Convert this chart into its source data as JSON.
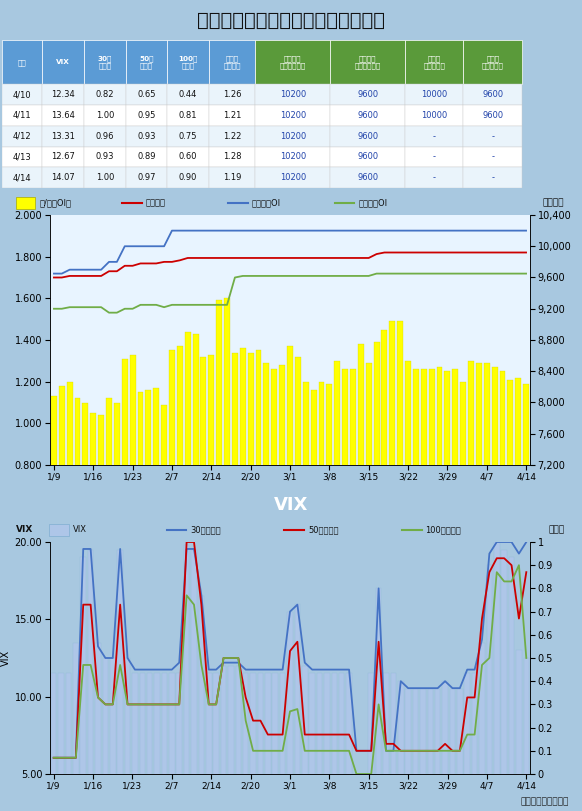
{
  "title": "選擇權波動率指數與賣買權未平倉比",
  "table": {
    "col_headers_blue": [
      "日期",
      "VIX",
      "30日\n百分位",
      "50日\n百分位",
      "100日\n百分位",
      "賣買權\n未平倉比"
    ],
    "col_headers_green": [
      "買權最大\n未平倉履約價",
      "賣權最大\n未平倉履約價",
      "週買權\n最大履約價",
      "週賣權\n最大履約價"
    ],
    "rows": [
      [
        "4/10",
        "12.34",
        "0.82",
        "0.65",
        "0.44",
        "1.26",
        "10200",
        "9600",
        "10000",
        "9600"
      ],
      [
        "4/11",
        "13.64",
        "1.00",
        "0.95",
        "0.81",
        "1.21",
        "10200",
        "9600",
        "10000",
        "9600"
      ],
      [
        "4/12",
        "13.31",
        "0.96",
        "0.93",
        "0.75",
        "1.22",
        "10200",
        "9600",
        "-",
        "-"
      ],
      [
        "4/13",
        "12.67",
        "0.93",
        "0.89",
        "0.60",
        "1.28",
        "10200",
        "9600",
        "-",
        "-"
      ],
      [
        "4/14",
        "14.07",
        "1.00",
        "0.97",
        "0.90",
        "1.19",
        "10200",
        "9600",
        "-",
        "-"
      ]
    ],
    "col_widths": [
      0.07,
      0.072,
      0.072,
      0.072,
      0.072,
      0.08,
      0.13,
      0.13,
      0.1,
      0.102
    ]
  },
  "chart1": {
    "bar_values": [
      1.13,
      1.18,
      1.2,
      1.12,
      1.1,
      1.05,
      1.04,
      1.12,
      1.1,
      1.31,
      1.33,
      1.15,
      1.16,
      1.17,
      1.09,
      1.35,
      1.37,
      1.44,
      1.43,
      1.32,
      1.33,
      1.59,
      1.6,
      1.34,
      1.36,
      1.34,
      1.35,
      1.29,
      1.26,
      1.28,
      1.37,
      1.32,
      1.2,
      1.16,
      1.2,
      1.19,
      1.3,
      1.26,
      1.26,
      1.38,
      1.29,
      1.39,
      1.45,
      1.49,
      1.49,
      1.3,
      1.26,
      1.26,
      1.26,
      1.27,
      1.25,
      1.26,
      1.2,
      1.3,
      1.29,
      1.29,
      1.27,
      1.25,
      1.21,
      1.22,
      1.19
    ],
    "call_oi": [
      9650,
      9650,
      9700,
      9700,
      9700,
      9700,
      9700,
      9800,
      9800,
      10000,
      10000,
      10000,
      10000,
      10000,
      10000,
      10200,
      10200,
      10200,
      10200,
      10200,
      10200,
      10200,
      10200,
      10200,
      10200,
      10200,
      10200,
      10200,
      10200,
      10200,
      10200,
      10200,
      10200,
      10200,
      10200,
      10200,
      10200,
      10200,
      10200,
      10200,
      10200,
      10200,
      10200,
      10200,
      10200,
      10200,
      10200,
      10200,
      10200,
      10200,
      10200,
      10200,
      10200,
      10200,
      10200,
      10200,
      10200,
      10200,
      10200,
      10200,
      10200
    ],
    "put_oi": [
      9200,
      9200,
      9220,
      9220,
      9220,
      9220,
      9220,
      9150,
      9150,
      9200,
      9200,
      9250,
      9250,
      9250,
      9220,
      9250,
      9250,
      9250,
      9250,
      9250,
      9250,
      9250,
      9250,
      9600,
      9620,
      9620,
      9620,
      9620,
      9620,
      9620,
      9620,
      9620,
      9620,
      9620,
      9620,
      9620,
      9620,
      9620,
      9620,
      9620,
      9620,
      9650,
      9650,
      9650,
      9650,
      9650,
      9650,
      9650,
      9650,
      9650,
      9650,
      9650,
      9650,
      9650,
      9650,
      9650,
      9650,
      9650,
      9650,
      9650,
      9650
    ],
    "weighted_index": [
      9600,
      9600,
      9620,
      9620,
      9620,
      9620,
      9620,
      9680,
      9680,
      9750,
      9750,
      9780,
      9780,
      9780,
      9800,
      9800,
      9820,
      9850,
      9850,
      9850,
      9850,
      9850,
      9850,
      9850,
      9850,
      9850,
      9850,
      9850,
      9850,
      9850,
      9850,
      9850,
      9850,
      9850,
      9850,
      9850,
      9850,
      9850,
      9850,
      9850,
      9850,
      9900,
      9920,
      9920,
      9920,
      9920,
      9920,
      9920,
      9920,
      9920,
      9920,
      9920,
      9920,
      9920,
      9920,
      9920,
      9920,
      9920,
      9920,
      9920,
      9920
    ],
    "ylim_left": [
      0.8,
      2.0
    ],
    "ylim_right": [
      7200,
      10400
    ],
    "yticks_left": [
      0.8,
      1.0,
      1.2,
      1.4,
      1.6,
      1.8,
      2.0
    ],
    "yticks_right": [
      7200,
      7600,
      8000,
      8400,
      8800,
      9200,
      9600,
      10000,
      10400
    ],
    "xtick_labels": [
      "1/9",
      "1/16",
      "1/23",
      "2/7",
      "2/14",
      "2/20",
      "3/1",
      "3/8",
      "3/15",
      "3/22",
      "3/29",
      "4/7",
      "4/14"
    ],
    "right_ylabel": "加權指數",
    "legend": [
      "賣/買權OI比",
      "加權指數",
      "買權最大OI",
      "賣權最大OI"
    ],
    "legend_colors": [
      "yellow",
      "#cc0000",
      "#4472c4",
      "#70ad47"
    ]
  },
  "chart2": {
    "vix": [
      11.5,
      11.5,
      11.5,
      13.5,
      19.0,
      19.5,
      13.5,
      12.5,
      12.5,
      19.5,
      12.5,
      11.5,
      11.5,
      11.5,
      11.5,
      11.5,
      11.5,
      11.5,
      19.8,
      19.5,
      16.5,
      11.5,
      11.5,
      12.0,
      12.0,
      12.0,
      11.5,
      11.5,
      11.5,
      11.5,
      11.5,
      11.5,
      15.5,
      16.0,
      12.0,
      11.5,
      11.5,
      11.5,
      11.5,
      11.5,
      11.5,
      5.0,
      5.0,
      11.5,
      17.0,
      11.5,
      11.5,
      11.0,
      10.5,
      10.5,
      10.5,
      10.5,
      10.5,
      11.0,
      10.5,
      10.5,
      11.5,
      11.5,
      13.5,
      18.5,
      20.0,
      19.5,
      19.0,
      13.0,
      12.5
    ],
    "p30": [
      0.07,
      0.07,
      0.07,
      0.07,
      0.97,
      0.97,
      0.55,
      0.5,
      0.5,
      0.97,
      0.5,
      0.45,
      0.45,
      0.45,
      0.45,
      0.45,
      0.45,
      0.48,
      0.97,
      0.97,
      0.77,
      0.45,
      0.45,
      0.48,
      0.48,
      0.48,
      0.45,
      0.45,
      0.45,
      0.45,
      0.45,
      0.45,
      0.7,
      0.73,
      0.48,
      0.45,
      0.45,
      0.45,
      0.45,
      0.45,
      0.45,
      0.1,
      0.1,
      0.1,
      0.8,
      0.1,
      0.1,
      0.4,
      0.37,
      0.37,
      0.37,
      0.37,
      0.37,
      0.4,
      0.37,
      0.37,
      0.45,
      0.45,
      0.58,
      0.95,
      1.0,
      1.0,
      1.0,
      0.95,
      1.0
    ],
    "p50": [
      0.07,
      0.07,
      0.07,
      0.07,
      0.73,
      0.73,
      0.33,
      0.3,
      0.3,
      0.73,
      0.3,
      0.3,
      0.3,
      0.3,
      0.3,
      0.3,
      0.3,
      0.3,
      1.0,
      1.0,
      0.73,
      0.3,
      0.3,
      0.5,
      0.5,
      0.5,
      0.33,
      0.23,
      0.23,
      0.17,
      0.17,
      0.17,
      0.53,
      0.57,
      0.17,
      0.17,
      0.17,
      0.17,
      0.17,
      0.17,
      0.17,
      0.1,
      0.1,
      0.1,
      0.57,
      0.13,
      0.13,
      0.1,
      0.1,
      0.1,
      0.1,
      0.1,
      0.1,
      0.13,
      0.1,
      0.1,
      0.33,
      0.33,
      0.67,
      0.87,
      0.93,
      0.93,
      0.9,
      0.67,
      0.87
    ],
    "p100": [
      0.07,
      0.07,
      0.07,
      0.07,
      0.47,
      0.47,
      0.33,
      0.3,
      0.3,
      0.47,
      0.3,
      0.3,
      0.3,
      0.3,
      0.3,
      0.3,
      0.3,
      0.3,
      0.77,
      0.73,
      0.47,
      0.3,
      0.3,
      0.5,
      0.5,
      0.5,
      0.23,
      0.1,
      0.1,
      0.1,
      0.1,
      0.1,
      0.27,
      0.28,
      0.1,
      0.1,
      0.1,
      0.1,
      0.1,
      0.1,
      0.1,
      0.0,
      0.0,
      0.0,
      0.3,
      0.1,
      0.1,
      0.1,
      0.1,
      0.1,
      0.1,
      0.1,
      0.1,
      0.1,
      0.1,
      0.1,
      0.17,
      0.17,
      0.47,
      0.5,
      0.87,
      0.83,
      0.83,
      0.9,
      0.5
    ],
    "ylim_left": [
      5.0,
      20.0
    ],
    "ylim_right": [
      0,
      1.0
    ],
    "yticks_left": [
      5.0,
      10.0,
      15.0,
      20.0
    ],
    "yticks_right": [
      0,
      0.1,
      0.2,
      0.3,
      0.4,
      0.5,
      0.6,
      0.7,
      0.8,
      0.9,
      1.0
    ],
    "xtick_labels": [
      "1/9",
      "1/16",
      "1/23",
      "2/7",
      "2/14",
      "2/20",
      "3/1",
      "3/8",
      "3/15",
      "3/22",
      "3/29",
      "4/7",
      "4/14"
    ],
    "left_ylabel": "VIX",
    "right_ylabel": "百分位",
    "vix_title": "VIX",
    "legend": [
      "VIX",
      "30日百分位",
      "50日百分位",
      "100日百分位"
    ],
    "legend_colors": [
      "#aec6e8",
      "#4472c4",
      "#cc0000",
      "#70ad47"
    ]
  },
  "footer": "統一期貨研究科製作",
  "bg_outer": "#a8c8e0",
  "bg_chart1": "#e8f4ff",
  "bg_chart2": "#a8c8e0",
  "bg_vix_header": "#88b8d8",
  "header_blue": "#5b9bd5",
  "header_green": "#5a9a3a",
  "row_colors": [
    "#eaf4fb",
    "#ffffff"
  ]
}
